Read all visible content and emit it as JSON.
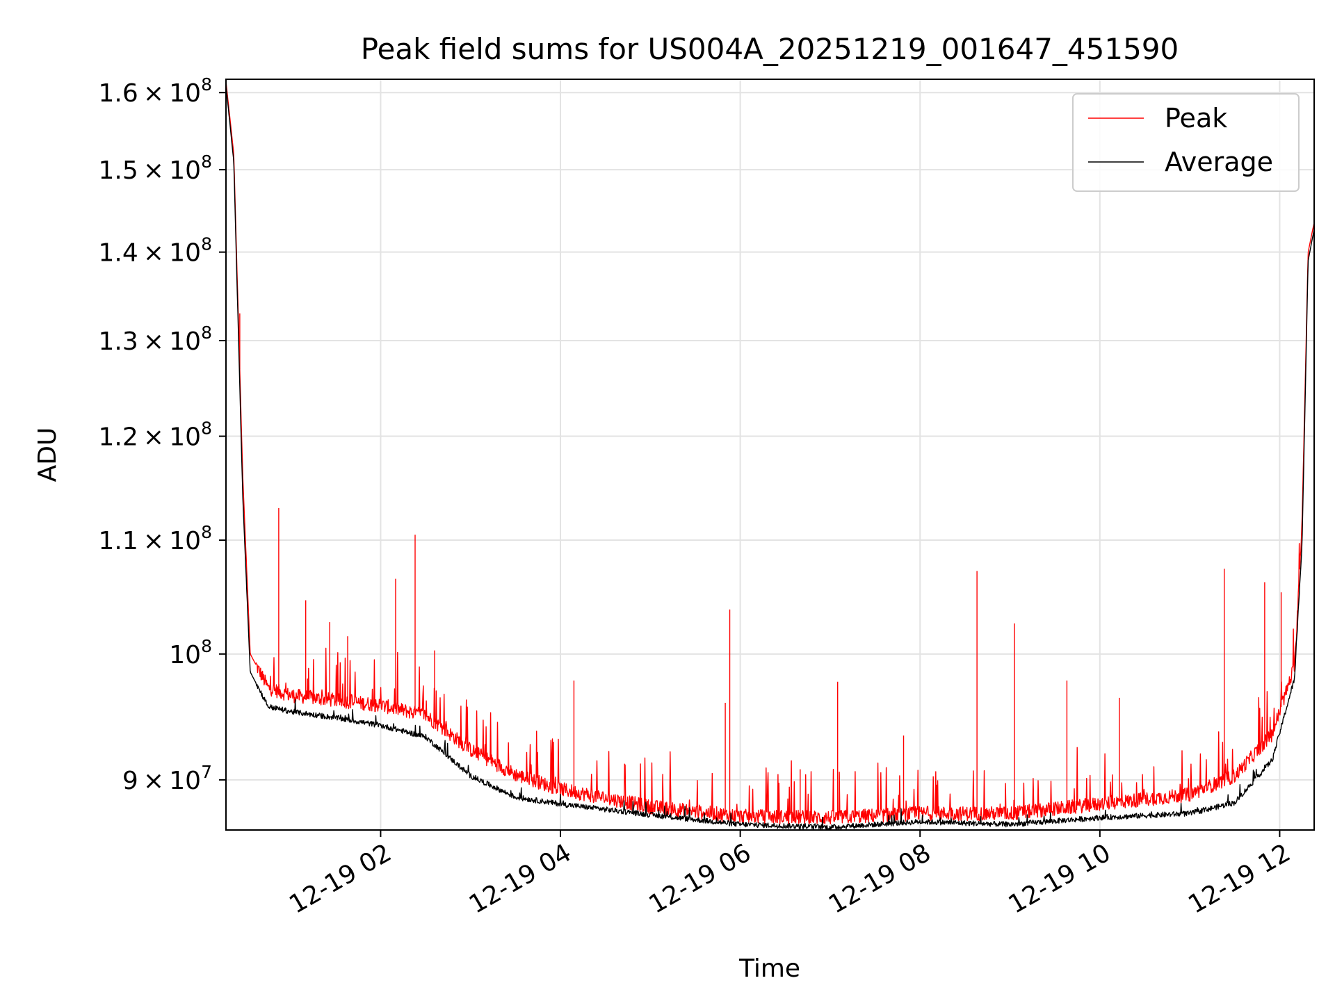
{
  "chart_data": {
    "type": "line",
    "title": "Peak field sums for US004A_20251219_001647_451590",
    "xlabel": "Time",
    "ylabel": "ADU",
    "y_scale": "log",
    "grid": true,
    "legend_position": "top-right",
    "x_range": [
      "2025-12-19 00:16:47",
      "2025-12-19 12:23:00"
    ],
    "y_range": [
      86300000,
      161800000
    ],
    "x_ticks": [
      {
        "value": "2025-12-19 02:00",
        "label": "12-19 02"
      },
      {
        "value": "2025-12-19 04:00",
        "label": "12-19 04"
      },
      {
        "value": "2025-12-19 06:00",
        "label": "12-19 06"
      },
      {
        "value": "2025-12-19 08:00",
        "label": "12-19 08"
      },
      {
        "value": "2025-12-19 10:00",
        "label": "12-19 10"
      },
      {
        "value": "2025-12-19 12:00",
        "label": "12-19 12"
      }
    ],
    "y_ticks": [
      {
        "value": 90000000,
        "mantissa": "9",
        "exponent": "7"
      },
      {
        "value": 100000000,
        "mantissa": "",
        "exponent": "8"
      },
      {
        "value": 110000000,
        "mantissa": "1.1",
        "exponent": "8"
      },
      {
        "value": 120000000,
        "mantissa": "1.2",
        "exponent": "8"
      },
      {
        "value": 130000000,
        "mantissa": "1.3",
        "exponent": "8"
      },
      {
        "value": 140000000,
        "mantissa": "1.4",
        "exponent": "8"
      },
      {
        "value": 150000000,
        "mantissa": "1.5",
        "exponent": "8"
      },
      {
        "value": 160000000,
        "mantissa": "1.6",
        "exponent": "8"
      }
    ],
    "series": [
      {
        "name": "Peak",
        "color": "#ff0000",
        "baseline": [
          [
            "2025-12-19 00:16:47",
            161500000
          ],
          [
            "2025-12-19 00:22:00",
            152000000
          ],
          [
            "2025-12-19 00:28:00",
            116000000
          ],
          [
            "2025-12-19 00:33:00",
            100000000
          ],
          [
            "2025-12-19 00:45:00",
            97200000
          ],
          [
            "2025-12-19 01:00:00",
            96600000
          ],
          [
            "2025-12-19 01:30:00",
            96200000
          ],
          [
            "2025-12-19 02:00:00",
            95800000
          ],
          [
            "2025-12-19 02:30:00",
            95000000
          ],
          [
            "2025-12-19 03:00:00",
            92300000
          ],
          [
            "2025-12-19 03:30:00",
            90400000
          ],
          [
            "2025-12-19 04:00:00",
            89300000
          ],
          [
            "2025-12-19 05:00:00",
            88000000
          ],
          [
            "2025-12-19 06:00:00",
            87300000
          ],
          [
            "2025-12-19 07:00:00",
            87200000
          ],
          [
            "2025-12-19 08:00:00",
            87500000
          ],
          [
            "2025-12-19 09:00:00",
            87500000
          ],
          [
            "2025-12-19 10:00:00",
            88200000
          ],
          [
            "2025-12-19 11:00:00",
            88900000
          ],
          [
            "2025-12-19 11:30:00",
            90300000
          ],
          [
            "2025-12-19 11:55:00",
            93500000
          ],
          [
            "2025-12-19 12:10:00",
            99000000
          ],
          [
            "2025-12-19 12:15:00",
            112000000
          ],
          [
            "2025-12-19 12:19:00",
            140000000
          ],
          [
            "2025-12-19 12:23:00",
            143500000
          ]
        ],
        "spikes": [
          [
            "2025-12-19 00:26:00",
            133000000
          ],
          [
            "2025-12-19 00:52:00",
            113000000
          ],
          [
            "2025-12-19 01:10:00",
            104600000
          ],
          [
            "2025-12-19 01:26:00",
            102700000
          ],
          [
            "2025-12-19 01:38:00",
            101500000
          ],
          [
            "2025-12-19 02:10:00",
            106500000
          ],
          [
            "2025-12-19 02:23:00",
            110500000
          ],
          [
            "2025-12-19 02:36:00",
            100300000
          ],
          [
            "2025-12-19 04:09:00",
            97800000
          ],
          [
            "2025-12-19 05:50:00",
            96000000
          ],
          [
            "2025-12-19 05:53:00",
            103800000
          ],
          [
            "2025-12-19 06:40:00",
            90800000
          ],
          [
            "2025-12-19 07:05:00",
            97700000
          ],
          [
            "2025-12-19 07:49:00",
            93400000
          ],
          [
            "2025-12-19 08:38:00",
            107200000
          ],
          [
            "2025-12-19 09:03:00",
            102600000
          ],
          [
            "2025-12-19 09:38:00",
            97800000
          ],
          [
            "2025-12-19 10:13:00",
            96400000
          ],
          [
            "2025-12-19 11:23:00",
            107400000
          ],
          [
            "2025-12-19 11:50:00",
            106200000
          ],
          [
            "2025-12-19 12:01:00",
            105300000
          ]
        ]
      },
      {
        "name": "Average",
        "color": "#000000",
        "baseline": [
          [
            "2025-12-19 00:16:47",
            161000000
          ],
          [
            "2025-12-19 00:22:00",
            151000000
          ],
          [
            "2025-12-19 00:28:00",
            114000000
          ],
          [
            "2025-12-19 00:33:00",
            98500000
          ],
          [
            "2025-12-19 00:45:00",
            95700000
          ],
          [
            "2025-12-19 01:00:00",
            95300000
          ],
          [
            "2025-12-19 01:30:00",
            94800000
          ],
          [
            "2025-12-19 02:00:00",
            94200000
          ],
          [
            "2025-12-19 02:30:00",
            93300000
          ],
          [
            "2025-12-19 03:00:00",
            90300000
          ],
          [
            "2025-12-19 03:30:00",
            88700000
          ],
          [
            "2025-12-19 04:00:00",
            88200000
          ],
          [
            "2025-12-19 05:00:00",
            87400000
          ],
          [
            "2025-12-19 06:00:00",
            86700000
          ],
          [
            "2025-12-19 07:00:00",
            86500000
          ],
          [
            "2025-12-19 08:00:00",
            86900000
          ],
          [
            "2025-12-19 09:00:00",
            86700000
          ],
          [
            "2025-12-19 10:00:00",
            87200000
          ],
          [
            "2025-12-19 11:00:00",
            87500000
          ],
          [
            "2025-12-19 11:30:00",
            88300000
          ],
          [
            "2025-12-19 11:55:00",
            91500000
          ],
          [
            "2025-12-19 12:10:00",
            98000000
          ],
          [
            "2025-12-19 12:15:00",
            110000000
          ],
          [
            "2025-12-19 12:19:00",
            139000000
          ],
          [
            "2025-12-19 12:23:00",
            142700000
          ]
        ]
      }
    ]
  }
}
